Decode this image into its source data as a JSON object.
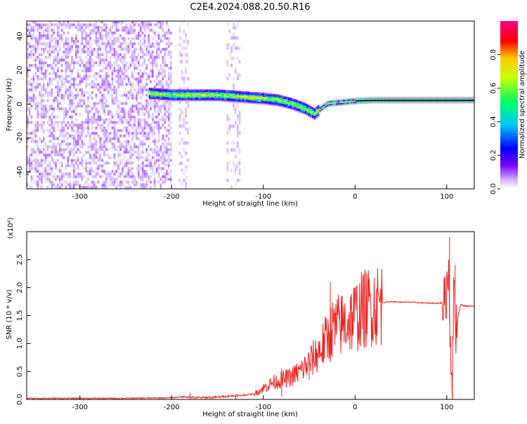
{
  "title": "C2E4.2024.088.20.50.R16",
  "chart_data": [
    {
      "type": "heatmap",
      "xlabel": "Height of straight line (km)",
      "ylabel": "Frequency (Hz)",
      "xlim": [
        -358,
        130
      ],
      "ylim": [
        -50,
        49
      ],
      "xticks": [
        -300,
        -200,
        -100,
        0,
        100
      ],
      "yticks": [
        -40,
        -20,
        0,
        20,
        40
      ],
      "colorbar": {
        "label": "Normalized spectral amplitude",
        "range": [
          0,
          1
        ],
        "ticks": [
          0.0,
          0.2,
          0.4,
          0.6,
          0.8
        ],
        "colors": [
          "#ffffff",
          "#c9a6ff",
          "#7a00ff",
          "#0000ff",
          "#00c8ff",
          "#00ff60",
          "#c8ff00",
          "#ffc800",
          "#ff0000",
          "#ff0080"
        ]
      },
      "ridge": {
        "x": [
          -225,
          -200,
          -175,
          -150,
          -125,
          -100,
          -85,
          -70,
          -55,
          -45,
          -38,
          -30,
          -20,
          -10,
          0,
          20,
          50,
          75,
          95,
          105,
          130
        ],
        "freq": [
          6,
          5,
          5,
          5,
          4,
          3,
          2,
          0,
          -3,
          -6,
          -3,
          0,
          0.5,
          1,
          1.5,
          2,
          2,
          2,
          2,
          2,
          2
        ]
      }
    },
    {
      "type": "line",
      "xlabel": "Height of straight line (km)",
      "ylabel": "SNR (10 * v/v)",
      "y_multiplier": "(x10⁴)",
      "xlim": [
        -358,
        130
      ],
      "ylim": [
        0,
        3.0
      ],
      "xticks": [
        -300,
        -200,
        -100,
        0,
        100
      ],
      "yticks": [
        0.0,
        0.5,
        1.0,
        1.5,
        2.0,
        2.5
      ],
      "series": [
        {
          "color": "#ee2222",
          "x": [
            -358,
            -300,
            -250,
            -200,
            -185,
            -175,
            -150,
            -140,
            -125,
            -110,
            -100,
            -90,
            -80,
            -70,
            -60,
            -50,
            -40,
            -30,
            -25,
            -20,
            -10,
            0,
            10,
            20,
            30,
            40,
            50,
            60,
            70,
            80,
            90,
            98,
            100,
            102,
            104,
            106,
            108,
            110,
            115,
            120,
            130
          ],
          "y": [
            0.02,
            0.02,
            0.02,
            0.03,
            0.05,
            0.03,
            0.04,
            0.06,
            0.07,
            0.1,
            0.2,
            0.3,
            0.35,
            0.4,
            0.5,
            0.65,
            0.85,
            1.1,
            1.25,
            1.3,
            1.38,
            1.5,
            1.62,
            1.7,
            1.73,
            1.75,
            1.74,
            1.74,
            1.73,
            1.72,
            1.72,
            1.73,
            2.0,
            2.4,
            1.0,
            0.3,
            2.2,
            1.3,
            1.7,
            1.67,
            1.67
          ]
        }
      ],
      "spikes": [
        {
          "x": -180,
          "y": 0.12
        },
        {
          "x": -130,
          "y": 0.1
        },
        {
          "x": -80,
          "y": 0.55
        },
        {
          "x": -50,
          "y": 0.75
        },
        {
          "x": -35,
          "y": 1.35
        },
        {
          "x": -27,
          "y": 2.1
        },
        {
          "x": -22,
          "y": 1.55
        },
        {
          "x": -15,
          "y": 1.75
        },
        {
          "x": -5,
          "y": 1.65
        },
        {
          "x": 103,
          "y": 2.9
        },
        {
          "x": 106,
          "y": 0.25
        },
        {
          "x": 109,
          "y": 2.4
        }
      ]
    }
  ]
}
